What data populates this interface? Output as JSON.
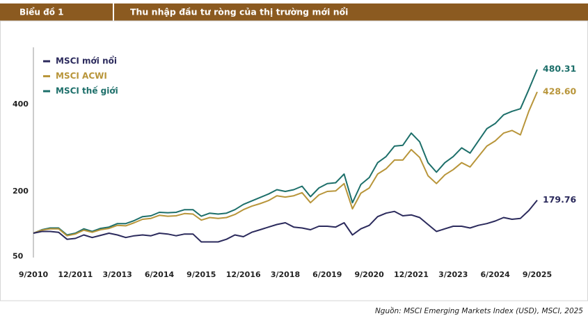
{
  "header": {
    "label": "Biểu đồ 1",
    "title": "Thu nhập đầu tư ròng của thị trường mới nổi"
  },
  "source": "Nguồn: MSCI Emerging Markets Index (USD), MSCI, 2025",
  "chart_data": {
    "type": "line",
    "x": [
      "9/2010",
      "12/2010",
      "3/2011",
      "6/2011",
      "9/2011",
      "12/2011",
      "3/2012",
      "6/2012",
      "9/2012",
      "12/2012",
      "3/2013",
      "6/2013",
      "9/2013",
      "12/2013",
      "3/2014",
      "6/2014",
      "9/2014",
      "12/2014",
      "3/2015",
      "6/2015",
      "9/2015",
      "12/2015",
      "3/2016",
      "6/2016",
      "9/2016",
      "12/2016",
      "3/2017",
      "6/2017",
      "9/2017",
      "12/2017",
      "3/2018",
      "6/2018",
      "9/2018",
      "12/2018",
      "3/2019",
      "6/2019",
      "9/2019",
      "12/2019",
      "3/2020",
      "6/2020",
      "9/2020",
      "12/2020",
      "3/2021",
      "6/2021",
      "9/2021",
      "12/2021",
      "3/2022",
      "6/2022",
      "9/2022",
      "12/2022",
      "3/2023",
      "6/2023",
      "9/2023",
      "12/2023",
      "3/2024",
      "6/2024",
      "9/2024",
      "12/2024",
      "3/2025",
      "6/2025",
      "9/2025"
    ],
    "series": [
      {
        "name": "MSCI mới nổi",
        "color": "#2b2a5c",
        "values": [
          104,
          108,
          108,
          106,
          90,
          92,
          100,
          94,
          99,
          104,
          100,
          94,
          98,
          100,
          98,
          104,
          102,
          98,
          102,
          102,
          84,
          84,
          84,
          90,
          100,
          96,
          106,
          112,
          118,
          124,
          128,
          118,
          116,
          112,
          120,
          120,
          118,
          128,
          100,
          114,
          122,
          142,
          150,
          154,
          144,
          146,
          140,
          124,
          108,
          114,
          120,
          120,
          116,
          122,
          126,
          132,
          140,
          136,
          138,
          156,
          179.76
        ],
        "value_labels": {
          "60": "179.76"
        }
      },
      {
        "name": "MSCI ACWI",
        "color": "#b8953a",
        "values": [
          104,
          111,
          114,
          114,
          98,
          102,
          111,
          106,
          112,
          115,
          122,
          121,
          128,
          136,
          138,
          145,
          143,
          144,
          149,
          148,
          134,
          140,
          138,
          140,
          147,
          158,
          166,
          172,
          179,
          190,
          187,
          190,
          197,
          174,
          192,
          200,
          201,
          218,
          160,
          196,
          208,
          240,
          252,
          272,
          272,
          296,
          278,
          236,
          218,
          238,
          250,
          266,
          256,
          280,
          304,
          316,
          334,
          340,
          330,
          384,
          428.6
        ],
        "value_labels": {
          "60": "428.60"
        }
      },
      {
        "name": "MSCI thế giới",
        "color": "#1d6f6a",
        "values": [
          104,
          112,
          116,
          116,
          100,
          104,
          114,
          108,
          115,
          118,
          126,
          126,
          133,
          142,
          144,
          152,
          151,
          152,
          158,
          158,
          143,
          150,
          148,
          150,
          158,
          170,
          178,
          186,
          194,
          204,
          200,
          204,
          212,
          188,
          208,
          218,
          220,
          240,
          174,
          216,
          232,
          266,
          280,
          304,
          306,
          334,
          314,
          266,
          244,
          266,
          280,
          300,
          288,
          316,
          344,
          356,
          376,
          384,
          390,
          434,
          480.31
        ],
        "value_labels": {
          "60": "480.31"
        }
      }
    ],
    "ylim": [
      48,
      531
    ],
    "yticks": [
      50,
      200,
      400
    ],
    "xticks": [
      "9/2010",
      "12/2011",
      "3/2013",
      "6/2014",
      "9/2015",
      "12/2016",
      "3/2018",
      "6/2019",
      "9/2020",
      "12/2021",
      "3/2023",
      "6/2024",
      "9/2025"
    ],
    "legend": "upper left"
  }
}
